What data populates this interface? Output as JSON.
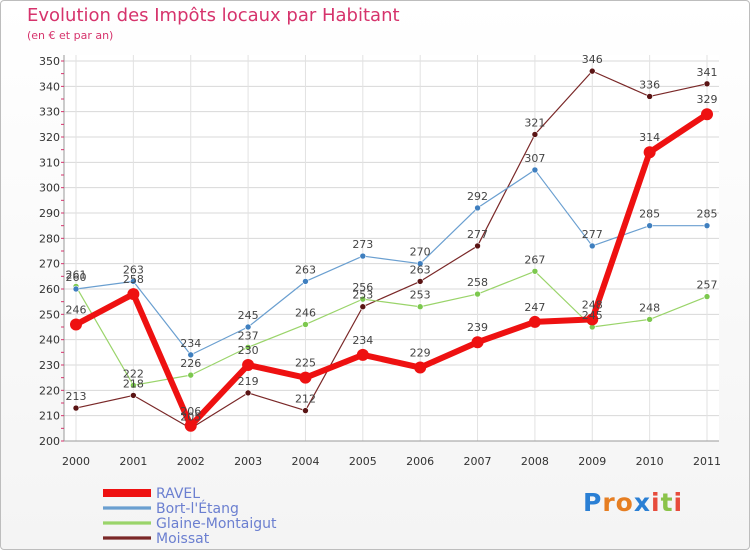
{
  "title": "Evolution des Impôts locaux par Habitant",
  "subtitle": "(en € et par an)",
  "logo": {
    "text": "Proxiti",
    "letters": [
      "P",
      "r",
      "o",
      "x",
      "i",
      "t",
      "i"
    ],
    "colors": [
      "#2a7fd4",
      "#e67e22",
      "#e67e22",
      "#2a7fd4",
      "#e74c3c",
      "#8bc34a",
      "#e74c3c"
    ]
  },
  "chart_data": {
    "type": "line",
    "title": "Evolution des Impôts locaux par Habitant",
    "subtitle": "(en € et par an)",
    "xlabel": "",
    "ylabel": "",
    "ylim": [
      200,
      350
    ],
    "yticks": [
      200,
      210,
      220,
      230,
      240,
      250,
      260,
      270,
      280,
      290,
      300,
      310,
      320,
      330,
      340,
      350
    ],
    "categories": [
      "2000",
      "2001",
      "2002",
      "2003",
      "2004",
      "2005",
      "2006",
      "2007",
      "2008",
      "2009",
      "2010",
      "2011"
    ],
    "legend_position": "bottom-left",
    "series": [
      {
        "name": "Moissat",
        "color": "#7a2828",
        "marker": "#5a1414",
        "width": 1.2,
        "radius": 3,
        "values": [
          213,
          218,
          205,
          219,
          212,
          253,
          263,
          277,
          321,
          346,
          336,
          341
        ]
      },
      {
        "name": "Glaine-Montaigut",
        "color": "#9ad46a",
        "marker": "#7cc84e",
        "width": 1.2,
        "radius": 3,
        "values": [
          261,
          222,
          226,
          237,
          246,
          256,
          253,
          258,
          267,
          245,
          248,
          257
        ]
      },
      {
        "name": "Bort-l'Étang",
        "color": "#6a9fd0",
        "marker": "#3f7fbf",
        "width": 1.2,
        "radius": 3,
        "values": [
          260,
          263,
          234,
          245,
          263,
          273,
          270,
          292,
          307,
          277,
          285,
          285
        ]
      },
      {
        "name": "RAVEL",
        "color": "#ee1111",
        "marker": "#ee1111",
        "width": 6,
        "radius": 6,
        "values": [
          246,
          258,
          206,
          230,
          225,
          234,
          229,
          239,
          247,
          248,
          314,
          329
        ]
      }
    ],
    "legend_order": [
      "RAVEL",
      "Bort-l'Étang",
      "Glaine-Montaigut",
      "Moissat"
    ]
  }
}
